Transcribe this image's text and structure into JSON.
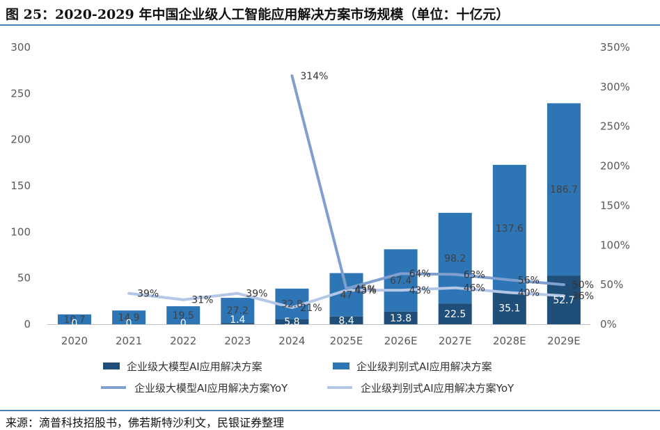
{
  "title": "图 25：2020-2029 年中国企业级人工智能应用解决方案市场规模（单位：十亿元）",
  "source": "来源：滴普科技招股书，佛若斯特沙利文，民银证券整理",
  "colors": {
    "large_model": "#1f4e79",
    "discriminative": "#2e75b6",
    "large_model_yoy": "#7f9fcf",
    "discriminative_yoy": "#b4c7e7"
  },
  "chart_data": {
    "type": "bar",
    "categories": [
      "2020",
      "2021",
      "2022",
      "2023",
      "2024",
      "2025E",
      "2026E",
      "2027E",
      "2028E",
      "2029E"
    ],
    "stacked": true,
    "y_left": {
      "lim": [
        0,
        300
      ],
      "ticks": [
        "0",
        "50",
        "100",
        "150",
        "200",
        "250",
        "300"
      ]
    },
    "y_right": {
      "lim": [
        0,
        350
      ],
      "ticks": [
        "0%",
        "50%",
        "100%",
        "150%",
        "200%",
        "250%",
        "300%",
        "350%"
      ]
    },
    "series": [
      {
        "name": "企业级大模型AI应用解决方案",
        "kind": "bar",
        "axis": "left",
        "values": [
          0,
          0,
          0,
          1.4,
          5.8,
          8.4,
          13.8,
          22.5,
          35.1,
          52.7
        ],
        "labels": [
          "0",
          "0",
          "0",
          "1.4",
          "5.8",
          "8.4",
          "13.8",
          "22.5",
          "35.1",
          "52.7"
        ]
      },
      {
        "name": "企业级判别式AI应用解决方案",
        "kind": "bar",
        "axis": "left",
        "values": [
          10.7,
          14.9,
          19.5,
          27.2,
          32.8,
          47,
          67.4,
          98.2,
          137.6,
          186.7
        ],
        "labels": [
          "10.7",
          "14.9",
          "19.5",
          "27.2",
          "32.8",
          "47",
          "67.4",
          "98.2",
          "137.6",
          "186.7"
        ]
      },
      {
        "name": "企业级大模型AI应用解决方案YoY",
        "kind": "line",
        "axis": "right",
        "values": [
          null,
          null,
          null,
          null,
          314,
          45,
          64,
          63,
          56,
          50
        ],
        "labels": [
          "",
          "",
          "",
          "",
          "314%",
          "45%",
          "64%",
          "63%",
          "56%",
          "50%"
        ]
      },
      {
        "name": "企业级判别式AI应用解决方案YoY",
        "kind": "line",
        "axis": "right",
        "values": [
          null,
          39,
          31,
          39,
          21,
          43,
          43,
          46,
          40,
          36
        ],
        "labels": [
          "",
          "39%",
          "31%",
          "39%",
          "21%",
          "43%",
          "43%",
          "46%",
          "40%",
          "36%"
        ]
      }
    ],
    "grid": false,
    "legend": "bottom"
  }
}
